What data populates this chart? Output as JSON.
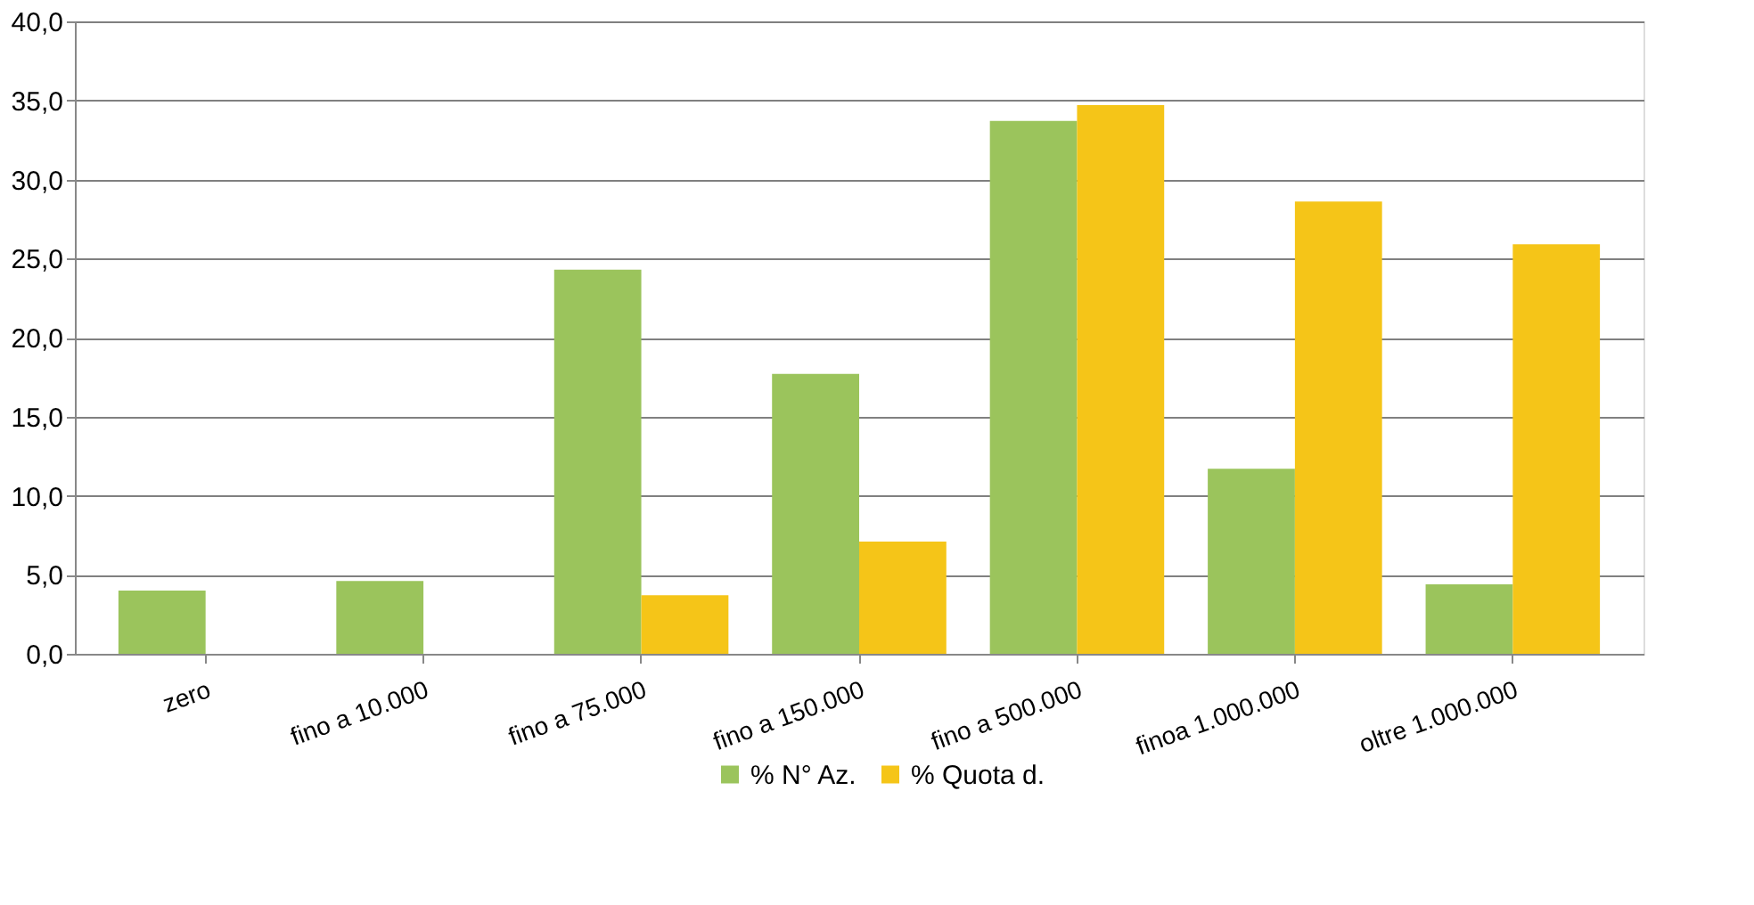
{
  "chart_data": {
    "type": "bar",
    "categories": [
      "zero",
      "fino a 10.000",
      "fino a 75.000",
      "fino a 150.000",
      "fino a 500.000",
      "finoa 1.000.000",
      "oltre 1.000.000"
    ],
    "series": [
      {
        "name": "% N° Az.",
        "color": "#9bc45c",
        "values": [
          4.0,
          4.6,
          24.3,
          17.7,
          33.7,
          11.7,
          4.4
        ]
      },
      {
        "name": "% Quota d.",
        "color": "#f5c518",
        "values": [
          0,
          0,
          3.7,
          7.1,
          34.7,
          28.6,
          25.9
        ]
      }
    ],
    "ylim": [
      0,
      40
    ],
    "yticks": [
      {
        "value": 0,
        "label": "0,0"
      },
      {
        "value": 5,
        "label": "5,0"
      },
      {
        "value": 10,
        "label": "10,0"
      },
      {
        "value": 15,
        "label": "15,0"
      },
      {
        "value": 20,
        "label": "20,0"
      },
      {
        "value": 25,
        "label": "25,0"
      },
      {
        "value": 30,
        "label": "30,0"
      },
      {
        "value": 35,
        "label": "35,0"
      },
      {
        "value": 40,
        "label": "40,0"
      }
    ],
    "grid": "y",
    "legend": "bottom"
  }
}
